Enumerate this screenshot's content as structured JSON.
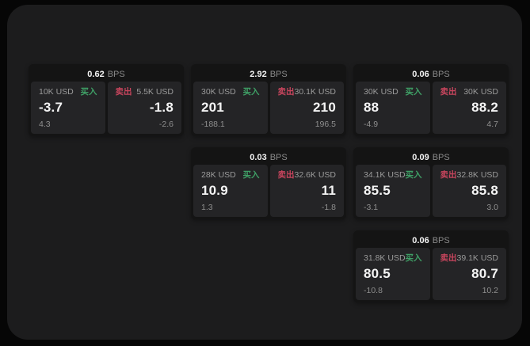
{
  "colors": {
    "background": "#060606",
    "window_bg": "#1c1c1d",
    "card_bg": "#141414",
    "panel_bg": "#242426",
    "buy_green": "#3fa066",
    "sell_red": "#c7455d",
    "value_white": "#f4f4f4",
    "label_gray": "#9b9b9b"
  },
  "cards": [
    {
      "bps_value": "0.62",
      "bps_unit": "BPS",
      "buy": {
        "amount": "10K USD",
        "side_label": "买入",
        "price": "-3.7",
        "delta": "4.3"
      },
      "sell": {
        "amount": "5.5K USD",
        "side_label": "卖出",
        "price": "-1.8",
        "delta": "-2.6"
      }
    },
    {
      "bps_value": "2.92",
      "bps_unit": "BPS",
      "buy": {
        "amount": "30K USD",
        "side_label": "买入",
        "price": "201",
        "delta": "-188.1"
      },
      "sell": {
        "amount": "30.1K USD",
        "side_label": "卖出",
        "price": "210",
        "delta": "196.5"
      }
    },
    {
      "bps_value": "0.06",
      "bps_unit": "BPS",
      "buy": {
        "amount": "30K USD",
        "side_label": "买入",
        "price": "88",
        "delta": "-4.9"
      },
      "sell": {
        "amount": "30K USD",
        "side_label": "卖出",
        "price": "88.2",
        "delta": "4.7"
      }
    },
    {
      "bps_value": "0.03",
      "bps_unit": "BPS",
      "buy": {
        "amount": "28K USD",
        "side_label": "买入",
        "price": "10.9",
        "delta": "1.3"
      },
      "sell": {
        "amount": "32.6K USD",
        "side_label": "卖出",
        "price": "11",
        "delta": "-1.8"
      }
    },
    {
      "bps_value": "0.09",
      "bps_unit": "BPS",
      "buy": {
        "amount": "34.1K USD",
        "side_label": "买入",
        "price": "85.5",
        "delta": "-3.1"
      },
      "sell": {
        "amount": "32.8K USD",
        "side_label": "卖出",
        "price": "85.8",
        "delta": "3.0"
      }
    },
    {
      "bps_value": "0.06",
      "bps_unit": "BPS",
      "buy": {
        "amount": "31.8K USD",
        "side_label": "买入",
        "price": "80.5",
        "delta": "-10.8"
      },
      "sell": {
        "amount": "39.1K USD",
        "side_label": "卖出",
        "price": "80.7",
        "delta": "10.2"
      }
    }
  ]
}
